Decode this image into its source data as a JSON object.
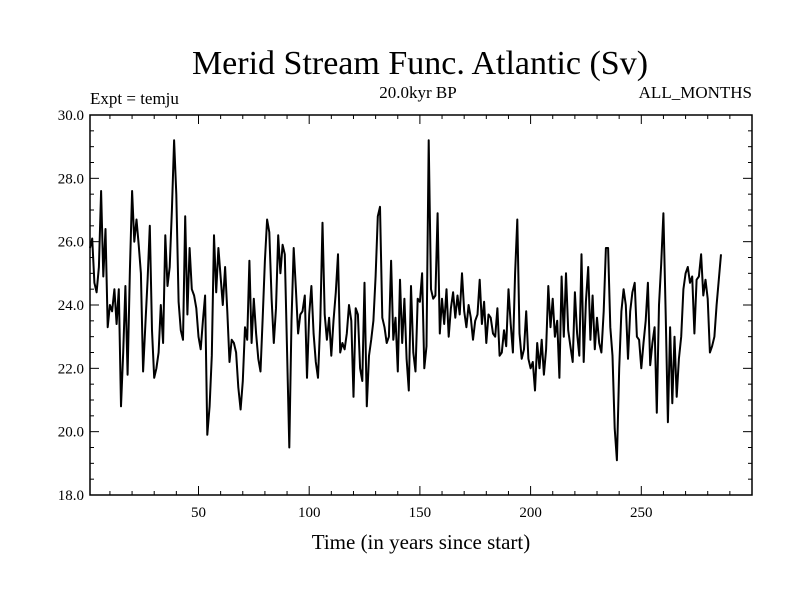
{
  "chart_data": {
    "type": "line",
    "title": "Merid Stream Func. Atlantic (Sv)",
    "subtitle_left": "Expt = temju",
    "subtitle_center": "20.0kyr BP",
    "subtitle_right": "ALL_MONTHS",
    "xlabel": "Time (in years since start)",
    "ylabel": "",
    "xlim": [
      1,
      300
    ],
    "ylim": [
      18.0,
      30.0
    ],
    "xticks": [
      50,
      100,
      150,
      200,
      250
    ],
    "xtick_labels": [
      "50",
      "100",
      "150",
      "200",
      "250"
    ],
    "yticks": [
      18,
      20,
      22,
      24,
      26,
      28,
      30
    ],
    "ytick_labels": [
      "18.0",
      "20.0",
      "22.0",
      "24.0",
      "26.0",
      "28.0",
      "30.0"
    ],
    "series": [
      {
        "name": "Merid Stream Func. Atlantic",
        "x_start": 1,
        "x_step": 1,
        "values": [
          25.8,
          26.1,
          24.7,
          24.4,
          25.2,
          27.6,
          24.9,
          26.4,
          23.3,
          24.0,
          23.8,
          24.5,
          23.4,
          24.5,
          20.8,
          22.5,
          24.6,
          21.8,
          25.1,
          27.6,
          26.0,
          26.7,
          25.9,
          25.0,
          21.9,
          23.4,
          24.8,
          26.5,
          23.2,
          21.7,
          22.0,
          22.5,
          24.0,
          22.8,
          26.2,
          24.6,
          25.2,
          27.0,
          29.2,
          27.5,
          24.1,
          23.2,
          22.9,
          26.8,
          23.7,
          25.8,
          24.5,
          24.3,
          23.9,
          23.0,
          22.6,
          23.5,
          24.3,
          19.9,
          20.8,
          22.4,
          26.2,
          24.4,
          25.8,
          24.9,
          24.0,
          25.2,
          23.8,
          22.2,
          22.9,
          22.8,
          22.5,
          21.4,
          20.7,
          21.6,
          23.3,
          22.9,
          25.4,
          22.8,
          24.2,
          23.1,
          22.3,
          21.9,
          23.6,
          25.4,
          26.7,
          26.3,
          24.2,
          22.8,
          23.9,
          26.2,
          25.0,
          25.9,
          25.6,
          22.5,
          19.5,
          23.5,
          25.8,
          24.5,
          23.1,
          23.7,
          23.8,
          24.3,
          21.7,
          23.7,
          24.6,
          23.1,
          22.2,
          21.7,
          23.5,
          26.6,
          23.7,
          22.9,
          23.6,
          22.4,
          23.5,
          24.4,
          25.6,
          22.5,
          22.8,
          22.6,
          23.1,
          24.0,
          23.5,
          21.1,
          23.9,
          23.7,
          22.0,
          21.6,
          24.7,
          20.8,
          22.4,
          22.9,
          23.5,
          24.9,
          26.8,
          27.1,
          23.6,
          23.3,
          22.8,
          23.0,
          25.4,
          22.9,
          23.6,
          21.9,
          24.8,
          22.8,
          24.2,
          22.3,
          21.3,
          24.6,
          22.5,
          21.9,
          24.2,
          24.1,
          25.0,
          22.0,
          22.7,
          29.2,
          24.5,
          24.2,
          24.3,
          26.9,
          23.1,
          24.2,
          23.4,
          24.5,
          23.0,
          23.9,
          24.4,
          23.6,
          24.3,
          23.7,
          25.0,
          23.8,
          23.3,
          24.0,
          23.6,
          22.9,
          23.5,
          23.7,
          24.8,
          23.4,
          24.1,
          22.8,
          23.7,
          23.6,
          23.1,
          23.0,
          23.9,
          22.4,
          22.5,
          23.2,
          22.7,
          24.5,
          23.4,
          22.5,
          25.0,
          26.7,
          23.1,
          22.3,
          22.6,
          23.8,
          22.3,
          22.0,
          22.2,
          21.3,
          22.8,
          22.0,
          22.9,
          21.8,
          22.6,
          24.6,
          23.3,
          24.2,
          23.0,
          23.5,
          21.7,
          24.9,
          23.0,
          25.0,
          23.2,
          22.7,
          22.2,
          24.4,
          23.1,
          22.4,
          25.6,
          22.2,
          24.1,
          25.2,
          22.9,
          24.3,
          22.6,
          23.6,
          22.8,
          22.5,
          23.8,
          25.8,
          25.8,
          23.3,
          22.4,
          20.1,
          19.1,
          22.0,
          23.8,
          24.5,
          24.0,
          22.3,
          23.8,
          24.4,
          24.7,
          23.0,
          22.9,
          22.0,
          22.8,
          23.5,
          24.7,
          22.1,
          22.8,
          23.3,
          20.6,
          24.0,
          25.3,
          26.9,
          23.7,
          20.3,
          23.3,
          20.9,
          23.0,
          21.1,
          22.3,
          23.0,
          24.5,
          25.0,
          25.2,
          24.7,
          24.9,
          23.1,
          24.8,
          24.9,
          25.6,
          24.3,
          24.8,
          24.2,
          22.5,
          22.7,
          23.0,
          24.0,
          24.8,
          25.6
        ]
      }
    ]
  }
}
